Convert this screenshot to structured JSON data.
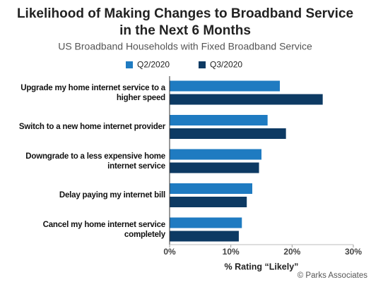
{
  "chart_data": {
    "type": "bar",
    "orientation": "horizontal",
    "title": "Likelihood of Making Changes to Broadband Service in the Next 6 Months",
    "subtitle": "US Broadband Households with Fixed Broadband Service",
    "categories": [
      "Upgrade my home internet service to a higher speed",
      "Switch to a new home internet provider",
      "Downgrade to a less expensive home internet service",
      "Delay paying my internet bill",
      "Cancel my home internet service completely"
    ],
    "series": [
      {
        "name": "Q2/2020",
        "color": "#1f7bc1",
        "values": [
          18,
          16,
          15,
          13.5,
          11.8
        ]
      },
      {
        "name": "Q3/2020",
        "color": "#0d3a63",
        "values": [
          25,
          19,
          14.6,
          12.6,
          11.3
        ]
      }
    ],
    "xlim": [
      0,
      30
    ],
    "xticks": [
      {
        "value": 0,
        "label": "0%"
      },
      {
        "value": 10,
        "label": "10%"
      },
      {
        "value": 20,
        "label": "20%"
      },
      {
        "value": 30,
        "label": "30%"
      }
    ],
    "xlabel": "% Rating “Likely”",
    "source": "© Parks Associates"
  }
}
